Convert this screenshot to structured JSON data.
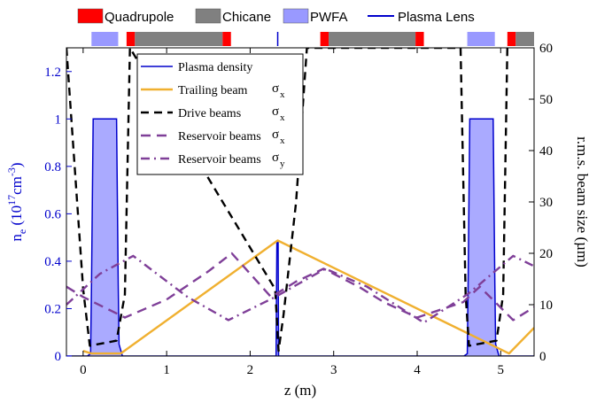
{
  "top_legend": [
    {
      "label": "Quadrupole",
      "color": "#ff0000"
    },
    {
      "label": "Chicane",
      "color": "#808080"
    },
    {
      "label": "PWFA",
      "color": "#9999ff"
    },
    {
      "label": "Plasma Lens",
      "color": "#0000cc"
    }
  ],
  "beamline": {
    "xrange": [
      -0.2,
      5.4
    ],
    "segments": [
      {
        "kind": "PWFA",
        "start": 0.1,
        "end": 0.42
      },
      {
        "kind": "Quadrupole",
        "start": 0.52,
        "end": 0.62
      },
      {
        "kind": "Chicane",
        "start": 0.62,
        "end": 1.67
      },
      {
        "kind": "Quadrupole",
        "start": 1.67,
        "end": 1.77
      },
      {
        "kind": "Plasma Lens",
        "start": 2.32,
        "end": 2.34
      },
      {
        "kind": "Quadrupole",
        "start": 2.84,
        "end": 2.94
      },
      {
        "kind": "Chicane",
        "start": 2.94,
        "end": 3.98
      },
      {
        "kind": "Quadrupole",
        "start": 3.98,
        "end": 4.08
      },
      {
        "kind": "PWFA",
        "start": 4.6,
        "end": 4.93
      },
      {
        "kind": "Quadrupole",
        "start": 5.08,
        "end": 5.18
      },
      {
        "kind": "Chicane",
        "start": 5.18,
        "end": 5.4
      }
    ]
  },
  "chart_data": {
    "type": "line",
    "xlabel": "z (m)",
    "ylabel_left": "n_e (10^17 cm^-3)",
    "ylabel_right": "r.m.s. beam size (µm)",
    "xlim": [
      -0.2,
      5.4
    ],
    "ylim_left": [
      0,
      1.3
    ],
    "ylim_right": [
      0,
      60
    ],
    "xticks": [
      0,
      1,
      2,
      3,
      4,
      5
    ],
    "yticks_left": [
      0,
      0.2,
      0.4,
      0.6,
      0.8,
      1,
      1.2
    ],
    "yticks_right": [
      0,
      10,
      20,
      30,
      40,
      50,
      60
    ],
    "legend_position": "top-left inside",
    "series": [
      {
        "name": "Plasma density",
        "axis": "left",
        "color": "#0000cc",
        "style": "solid-filled",
        "x": [
          -0.2,
          0.05,
          0.09,
          0.1,
          0.12,
          0.4,
          0.42,
          0.43,
          0.47,
          2.31,
          2.32,
          2.335,
          2.34,
          4.56,
          4.6,
          4.61,
          4.63,
          4.91,
          4.93,
          4.94,
          4.98,
          5.4
        ],
        "y": [
          0,
          0,
          0.01,
          0.3,
          1.0,
          1.0,
          0.3,
          0.05,
          0,
          0,
          0.48,
          0.48,
          0,
          0,
          0.01,
          0.3,
          1.0,
          1.0,
          0.3,
          0.05,
          0,
          0
        ]
      },
      {
        "name": "Trailing beam σx",
        "axis": "right",
        "color": "#f0b030",
        "style": "solid",
        "x": [
          0.0,
          0.1,
          0.45,
          2.33,
          5.1,
          5.4
        ],
        "y": [
          1,
          0.5,
          0.5,
          22.5,
          0.5,
          5.5
        ]
      },
      {
        "name": "Drive beams σx",
        "axis": "right",
        "color": "#000000",
        "style": "dashed",
        "x": [
          -0.2,
          0.0,
          0.08,
          0.4,
          0.5,
          0.56,
          2.3,
          2.34,
          2.4,
          2.55,
          2.68,
          4.52,
          4.58,
          4.62,
          4.95,
          5.03,
          5.08
        ],
        "y": [
          60,
          13,
          2,
          3,
          12,
          60,
          13,
          1,
          8,
          30,
          60,
          60,
          12,
          2,
          3,
          12,
          60
        ]
      },
      {
        "name": "Reservoir beams σx",
        "axis": "right",
        "color": "#7f3f98",
        "style": "dashed",
        "x": [
          -0.2,
          0.0,
          0.5,
          1.0,
          1.5,
          1.78,
          2.25,
          2.55,
          2.88,
          3.3,
          3.6,
          4.0,
          4.55,
          4.75,
          5.15,
          5.4
        ],
        "y": [
          13.5,
          11.5,
          7.5,
          11.0,
          16.5,
          20.0,
          11.5,
          14.5,
          17.0,
          13.5,
          10.5,
          7.5,
          10.5,
          13.5,
          7.0,
          9.5
        ]
      },
      {
        "name": "Reservoir beams σy",
        "axis": "right",
        "color": "#7f3f98",
        "style": "dashdot",
        "x": [
          -0.2,
          0.2,
          0.6,
          1.25,
          1.74,
          2.3,
          2.9,
          3.4,
          4.08,
          4.6,
          4.75,
          5.15,
          5.4
        ],
        "y": [
          10,
          16.0,
          19.5,
          11.5,
          7.0,
          11.5,
          17.0,
          13.5,
          6.5,
          12.0,
          14.0,
          19.5,
          17.5
        ]
      }
    ],
    "legend": [
      {
        "name": "Plasma density",
        "symbol": ""
      },
      {
        "name": "Trailing beam",
        "symbol": "σ",
        "sub": "x"
      },
      {
        "name": "Drive beams",
        "symbol": "σ",
        "sub": "x"
      },
      {
        "name": "Reservoir beams",
        "symbol": "σ",
        "sub": "x"
      },
      {
        "name": "Reservoir beams",
        "symbol": "σ",
        "sub": "y"
      }
    ]
  }
}
